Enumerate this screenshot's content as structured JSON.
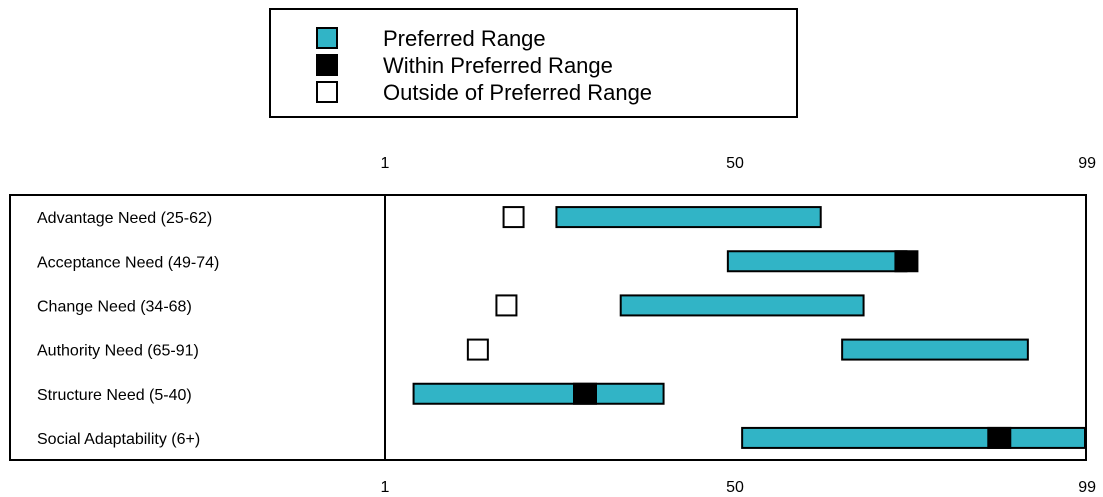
{
  "chart_data": {
    "type": "bar",
    "title": "",
    "xlabel": "",
    "ylabel": "",
    "xlim": [
      1,
      99
    ],
    "ticks": [
      "1",
      "50",
      "99"
    ],
    "tick_values": [
      1,
      50,
      99
    ],
    "grid": false,
    "legend_placement": "top-center",
    "colors": {
      "preferred": "#31b4c6",
      "within": "#000000",
      "outside": "#ffffff",
      "stroke": "#000000"
    },
    "legend": [
      {
        "label": "Preferred Range",
        "kind": "preferred"
      },
      {
        "label": "Within Preferred Range",
        "kind": "within"
      },
      {
        "label": "Outside of Preferred Range",
        "kind": "outside"
      }
    ],
    "categories": [
      "Advantage Need (25-62)",
      "Acceptance Need (49-74)",
      "Change Need (34-68)",
      "Authority Need (65-91)",
      "Structure Need (5-40)",
      "Social Adaptability (6+)"
    ],
    "ranges": [
      {
        "low": 25,
        "high": 62
      },
      {
        "low": 49,
        "high": 74
      },
      {
        "low": 34,
        "high": 68
      },
      {
        "low": 65,
        "high": 91
      },
      {
        "low": 5,
        "high": 40
      },
      {
        "low": 51,
        "high": 99
      }
    ],
    "scores": [
      {
        "value": 19,
        "status": "outside"
      },
      {
        "value": 74,
        "status": "within"
      },
      {
        "value": 18,
        "status": "outside"
      },
      {
        "value": 14,
        "status": "outside"
      },
      {
        "value": 29,
        "status": "within"
      },
      {
        "value": 87,
        "status": "within"
      }
    ]
  }
}
